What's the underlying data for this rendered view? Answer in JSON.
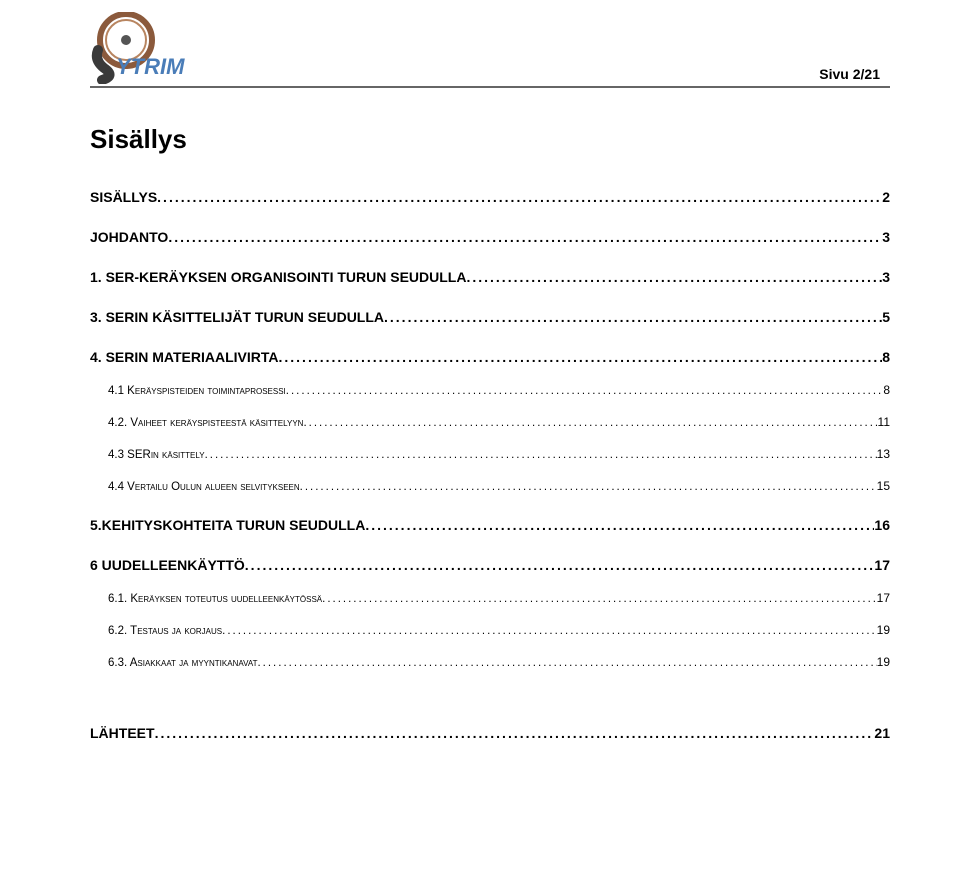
{
  "header": {
    "page_label": "Sivu 2/21"
  },
  "title": "Sisällys",
  "toc": [
    {
      "level": 1,
      "label": "SISÄLLYS",
      "page": "2"
    },
    {
      "level": 1,
      "label": "JOHDANTO",
      "page": "3"
    },
    {
      "level": 1,
      "label": "1. SER-KERÄYKSEN ORGANISOINTI TURUN SEUDULLA",
      "page": "3"
    },
    {
      "level": 1,
      "label": "3. SERIN KÄSITTELIJÄT TURUN SEUDULLA",
      "page": "5"
    },
    {
      "level": 1,
      "label": "4. SERIN MATERIAALIVIRTA",
      "page": "8"
    },
    {
      "level": 2,
      "label": "4.1 Keräyspisteiden toimintaprosessi",
      "page": "8"
    },
    {
      "level": 2,
      "label": "4.2. Vaiheet keräyspisteestä käsittelyyn",
      "page": "11"
    },
    {
      "level": 2,
      "label": "4.3 SERin käsittely",
      "page": "13"
    },
    {
      "level": 2,
      "label": "4.4 Vertailu Oulun alueen selvitykseen",
      "page": "15"
    },
    {
      "level": 1,
      "label": "5.KEHITYSKOHTEITA TURUN SEUDULLA",
      "page": "16"
    },
    {
      "level": 1,
      "label": "6 UUDELLEENKÄYTTÖ",
      "page": "17"
    },
    {
      "level": 2,
      "label": "6.1. Keräyksen toteutus uudelleenkäytössä",
      "page": "17"
    },
    {
      "level": 2,
      "label": "6.2. Testaus ja korjaus",
      "page": "19"
    },
    {
      "level": 2,
      "label": "6.3. Asiakkaat ja myyntikanavat",
      "page": "19"
    },
    {
      "level": 1,
      "label": "LÄHTEET",
      "page": "21",
      "extra_space": true
    }
  ],
  "styles": {
    "background_color": "#ffffff",
    "text_color": "#000000",
    "hr_color": "#666666",
    "logo_ring_color": "#8b5a3c",
    "logo_text_color": "#4a7db8",
    "logo_s_color": "#3a3a3a",
    "title_fontsize": 26,
    "lvl1_fontsize": 14,
    "lvl2_fontsize": 11.5,
    "page_number_fontsize": 14
  }
}
